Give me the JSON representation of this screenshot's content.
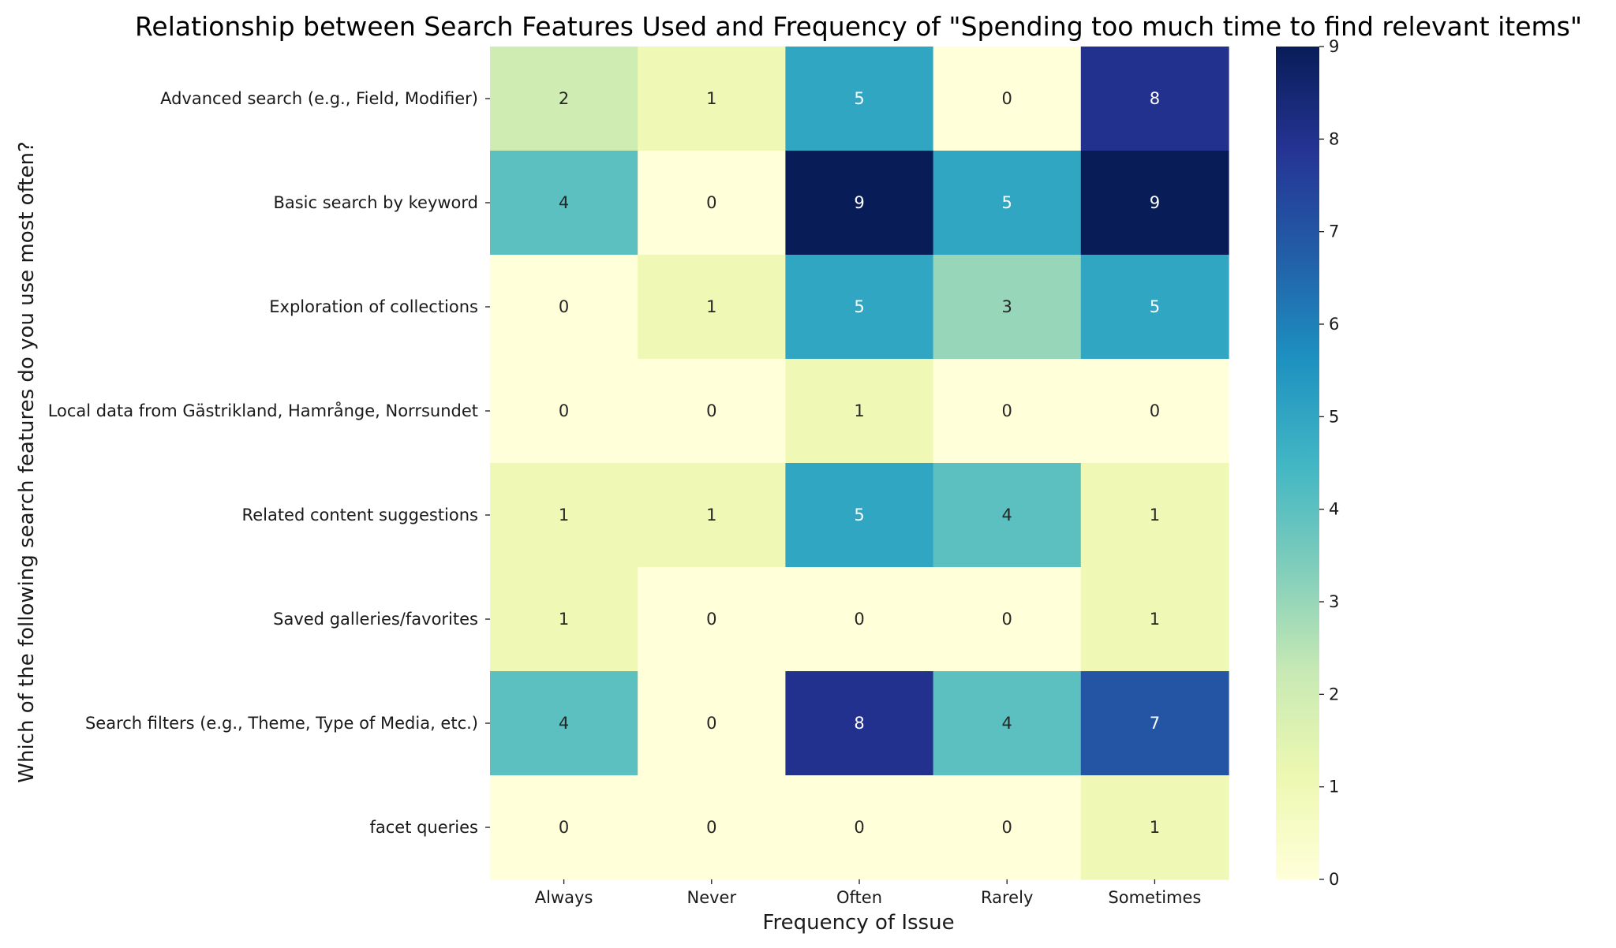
{
  "chart_data": {
    "type": "heatmap",
    "title": "Relationship between Search Features Used and Frequency of \"Spending too much time to find relevant items\"",
    "xlabel": "Frequency of Issue",
    "ylabel": "Which of the following search features do you use most often?",
    "x_categories": [
      "Always",
      "Never",
      "Often",
      "Rarely",
      "Sometimes"
    ],
    "y_categories": [
      "Advanced search (e.g., Field, Modifier)",
      "Basic search by keyword",
      "Exploration of collections",
      "Local data from Gästrikland, Hamrånge, Norrsundet",
      "Related content suggestions",
      "Saved galleries/favorites",
      "Search filters (e.g., Theme, Type of Media, etc.)",
      "facet queries "
    ],
    "values": [
      [
        2,
        1,
        5,
        0,
        8
      ],
      [
        4,
        0,
        9,
        5,
        9
      ],
      [
        0,
        1,
        5,
        3,
        5
      ],
      [
        0,
        0,
        1,
        0,
        0
      ],
      [
        1,
        1,
        5,
        4,
        1
      ],
      [
        1,
        0,
        0,
        0,
        1
      ],
      [
        4,
        0,
        8,
        4,
        7
      ],
      [
        0,
        0,
        0,
        0,
        1
      ]
    ],
    "colorbar": {
      "min": 0,
      "max": 9,
      "ticks": [
        "0",
        "1",
        "2",
        "3",
        "4",
        "5",
        "6",
        "7",
        "8",
        "9"
      ],
      "colormap": "YlGnBu"
    },
    "annotations": true,
    "grid": false,
    "legend": "colorbar-right"
  }
}
